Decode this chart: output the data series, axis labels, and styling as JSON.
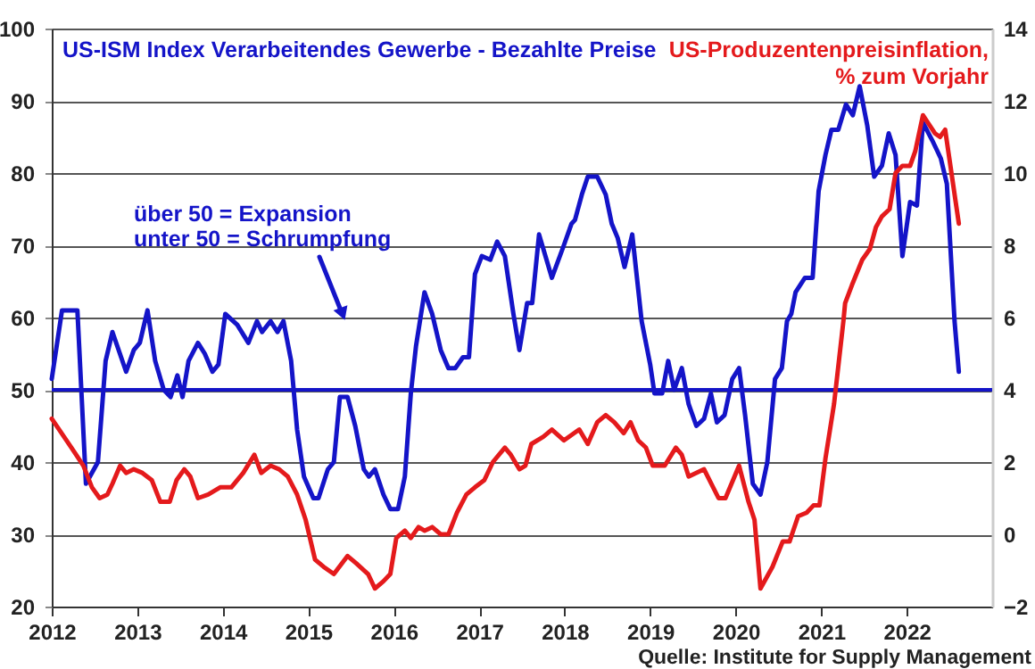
{
  "chart_data": {
    "type": "line",
    "xlim": [
      2012,
      2023
    ],
    "xticks": [
      2012,
      2013,
      2014,
      2015,
      2016,
      2017,
      2018,
      2019,
      2020,
      2021,
      2022
    ],
    "ylim": [
      20,
      100
    ],
    "yticks": [
      20,
      30,
      40,
      50,
      60,
      70,
      80,
      90,
      100
    ],
    "y2lim": [
      -2,
      14
    ],
    "y2ticks": [
      -2,
      0,
      2,
      4,
      6,
      8,
      10,
      12,
      14
    ],
    "grid": "y",
    "line_style": "solid",
    "series": [
      {
        "name": "US-ISM Index Verarbeitendes Gewerbe - Bezahlte Preise",
        "color": "#1414c8",
        "axis": "y",
        "x": [
          2012.0,
          2012.12,
          2012.3,
          2012.4,
          2012.54,
          2012.63,
          2012.71,
          2012.87,
          2012.96,
          2013.03,
          2013.12,
          2013.21,
          2013.31,
          2013.39,
          2013.47,
          2013.53,
          2013.6,
          2013.71,
          2013.79,
          2013.88,
          2013.95,
          2014.03,
          2014.17,
          2014.3,
          2014.4,
          2014.46,
          2014.56,
          2014.64,
          2014.71,
          2014.8,
          2014.87,
          2014.95,
          2015.06,
          2015.12,
          2015.23,
          2015.3,
          2015.37,
          2015.46,
          2015.55,
          2015.65,
          2015.71,
          2015.78,
          2015.88,
          2015.96,
          2016.05,
          2016.13,
          2016.2,
          2016.26,
          2016.36,
          2016.45,
          2016.55,
          2016.64,
          2016.72,
          2016.81,
          2016.88,
          2016.95,
          2017.03,
          2017.13,
          2017.21,
          2017.3,
          2017.4,
          2017.47,
          2017.56,
          2017.62,
          2017.7,
          2017.85,
          2017.99,
          2018.08,
          2018.12,
          2018.2,
          2018.27,
          2018.38,
          2018.48,
          2018.55,
          2018.62,
          2018.7,
          2018.79,
          2018.9,
          2019.0,
          2019.05,
          2019.14,
          2019.21,
          2019.28,
          2019.37,
          2019.45,
          2019.54,
          2019.63,
          2019.71,
          2019.78,
          2019.87,
          2019.96,
          2020.04,
          2020.11,
          2020.2,
          2020.29,
          2020.37,
          2020.46,
          2020.54,
          2020.6,
          2020.65,
          2020.7,
          2020.81,
          2020.9,
          2020.97,
          2021.05,
          2021.12,
          2021.2,
          2021.29,
          2021.37,
          2021.45,
          2021.54,
          2021.62,
          2021.71,
          2021.79,
          2021.87,
          2021.95,
          2022.04,
          2022.12,
          2022.19,
          2022.3,
          2022.4,
          2022.47,
          2022.56,
          2022.61
        ],
        "values": [
          51.5,
          61,
          61,
          37,
          40,
          54,
          58,
          52.5,
          55.5,
          56.5,
          61,
          54,
          50,
          49,
          52,
          49,
          54,
          56.5,
          55,
          52.5,
          53.5,
          60.5,
          59,
          56.5,
          59.5,
          58,
          59.5,
          58,
          59.5,
          54,
          44.5,
          38,
          35,
          35,
          39,
          40,
          49,
          49,
          45,
          39,
          38,
          39,
          35.5,
          33.5,
          33.5,
          38,
          49.5,
          56,
          63.5,
          60.5,
          55.5,
          53,
          53,
          54.5,
          54.5,
          66,
          68.5,
          68,
          70.5,
          68.5,
          60.5,
          55.5,
          62,
          62,
          71.5,
          65.5,
          70,
          73,
          73.5,
          77,
          79.5,
          79.5,
          77,
          73,
          71,
          67,
          71.5,
          59.5,
          53.5,
          49.5,
          49.5,
          54,
          50,
          53,
          48,
          45,
          46,
          49.5,
          45.5,
          46.5,
          51.5,
          53,
          46.5,
          37,
          35.5,
          40,
          51.5,
          53,
          59.5,
          60.5,
          63.5,
          65.5,
          65.5,
          77.5,
          82.5,
          86,
          86,
          89.5,
          88,
          92,
          86.5,
          79.5,
          81,
          85.5,
          82.5,
          68.5,
          76,
          75.5,
          87,
          84.5,
          82,
          78.5,
          59.5,
          52.5
        ]
      },
      {
        "name": "US-Produzentenpreisinflation,\n% zum Vorjahr",
        "color": "#e41a1c",
        "axis": "y2",
        "x": [
          2012.0,
          2012.23,
          2012.37,
          2012.47,
          2012.56,
          2012.65,
          2012.71,
          2012.8,
          2012.87,
          2012.96,
          2013.06,
          2013.17,
          2013.27,
          2013.38,
          2013.46,
          2013.55,
          2013.62,
          2013.71,
          2013.83,
          2013.97,
          2014.1,
          2014.24,
          2014.37,
          2014.45,
          2014.56,
          2014.66,
          2014.76,
          2014.87,
          2014.97,
          2015.08,
          2015.18,
          2015.3,
          2015.46,
          2015.56,
          2015.7,
          2015.78,
          2015.88,
          2015.96,
          2016.03,
          2016.13,
          2016.2,
          2016.29,
          2016.36,
          2016.45,
          2016.55,
          2016.64,
          2016.74,
          2016.85,
          2016.95,
          2017.06,
          2017.16,
          2017.3,
          2017.37,
          2017.47,
          2017.54,
          2017.61,
          2017.75,
          2017.85,
          2017.99,
          2018.17,
          2018.27,
          2018.38,
          2018.48,
          2018.58,
          2018.69,
          2018.77,
          2018.86,
          2018.95,
          2019.03,
          2019.17,
          2019.3,
          2019.37,
          2019.45,
          2019.63,
          2019.8,
          2019.88,
          2020.04,
          2020.15,
          2020.22,
          2020.29,
          2020.43,
          2020.55,
          2020.63,
          2020.73,
          2020.83,
          2020.91,
          2020.98,
          2021.05,
          2021.15,
          2021.26,
          2021.28,
          2021.36,
          2021.48,
          2021.57,
          2021.64,
          2021.71,
          2021.8,
          2021.87,
          2021.95,
          2022.04,
          2022.1,
          2022.19,
          2022.33,
          2022.39,
          2022.45,
          2022.61
        ],
        "values": [
          3.2,
          2.4,
          1.9,
          1.3,
          1.0,
          1.1,
          1.4,
          1.9,
          1.7,
          1.8,
          1.7,
          1.5,
          0.9,
          0.9,
          1.5,
          1.8,
          1.6,
          1.0,
          1.1,
          1.3,
          1.3,
          1.7,
          2.2,
          1.7,
          1.9,
          1.8,
          1.6,
          1.1,
          0.4,
          -0.7,
          -0.9,
          -1.1,
          -0.6,
          -0.8,
          -1.1,
          -1.5,
          -1.3,
          -1.1,
          -0.1,
          0.1,
          -0.1,
          0.2,
          0.1,
          0.2,
          0.0,
          0.0,
          0.6,
          1.1,
          1.3,
          1.5,
          2.0,
          2.4,
          2.2,
          1.8,
          1.9,
          2.5,
          2.7,
          2.9,
          2.6,
          2.9,
          2.5,
          3.1,
          3.3,
          3.1,
          2.8,
          3.1,
          2.6,
          2.4,
          1.9,
          1.9,
          2.4,
          2.2,
          1.6,
          1.8,
          1.0,
          1.0,
          1.9,
          0.9,
          0.4,
          -1.5,
          -0.9,
          -0.2,
          -0.2,
          0.5,
          0.6,
          0.8,
          0.8,
          2.1,
          3.6,
          5.9,
          6.4,
          6.9,
          7.6,
          7.9,
          8.5,
          8.8,
          9.0,
          10.0,
          10.2,
          10.2,
          10.6,
          11.6,
          11.1,
          11.0,
          11.2,
          8.6
        ]
      }
    ],
    "ref_lines": [
      {
        "axis": "y",
        "value": 50,
        "color": "#1414c8",
        "line_style": "solid"
      }
    ],
    "annotations": [
      "über 50 = Expansion\nunter 50 = Schrumpfung",
      "Quelle: Institute for Supply Management"
    ]
  }
}
